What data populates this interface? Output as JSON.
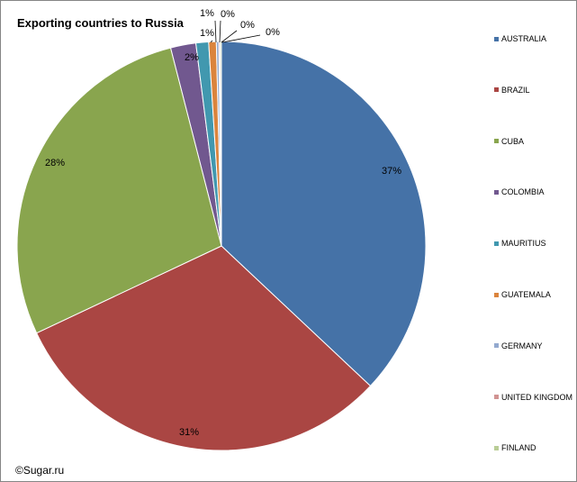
{
  "chart_data": {
    "type": "pie",
    "title": "Exporting countries to Russia",
    "categories": [
      "AUSTRALIA",
      "BRAZIL",
      "CUBA",
      "COLOMBIA",
      "MAURITIUS",
      "GUATEMALA",
      "GERMANY",
      "UNITED KINGDOM",
      "FINLAND"
    ],
    "values": [
      37.0,
      31.0,
      28.0,
      2.0,
      1.0,
      0.6,
      0.2,
      0.1,
      0.1
    ],
    "data_labels": [
      "37%",
      "31%",
      "28%",
      "2%",
      "1%",
      "1%",
      "0%",
      "0%",
      "0%"
    ],
    "colors": [
      "#4572A7",
      "#AA4643",
      "#89A54E",
      "#71588F",
      "#4198AF",
      "#DB843D",
      "#93A9CF",
      "#D19392",
      "#B9CD96"
    ],
    "legend_position": "right"
  },
  "footer": {
    "copyright": "©Sugar.ru"
  }
}
